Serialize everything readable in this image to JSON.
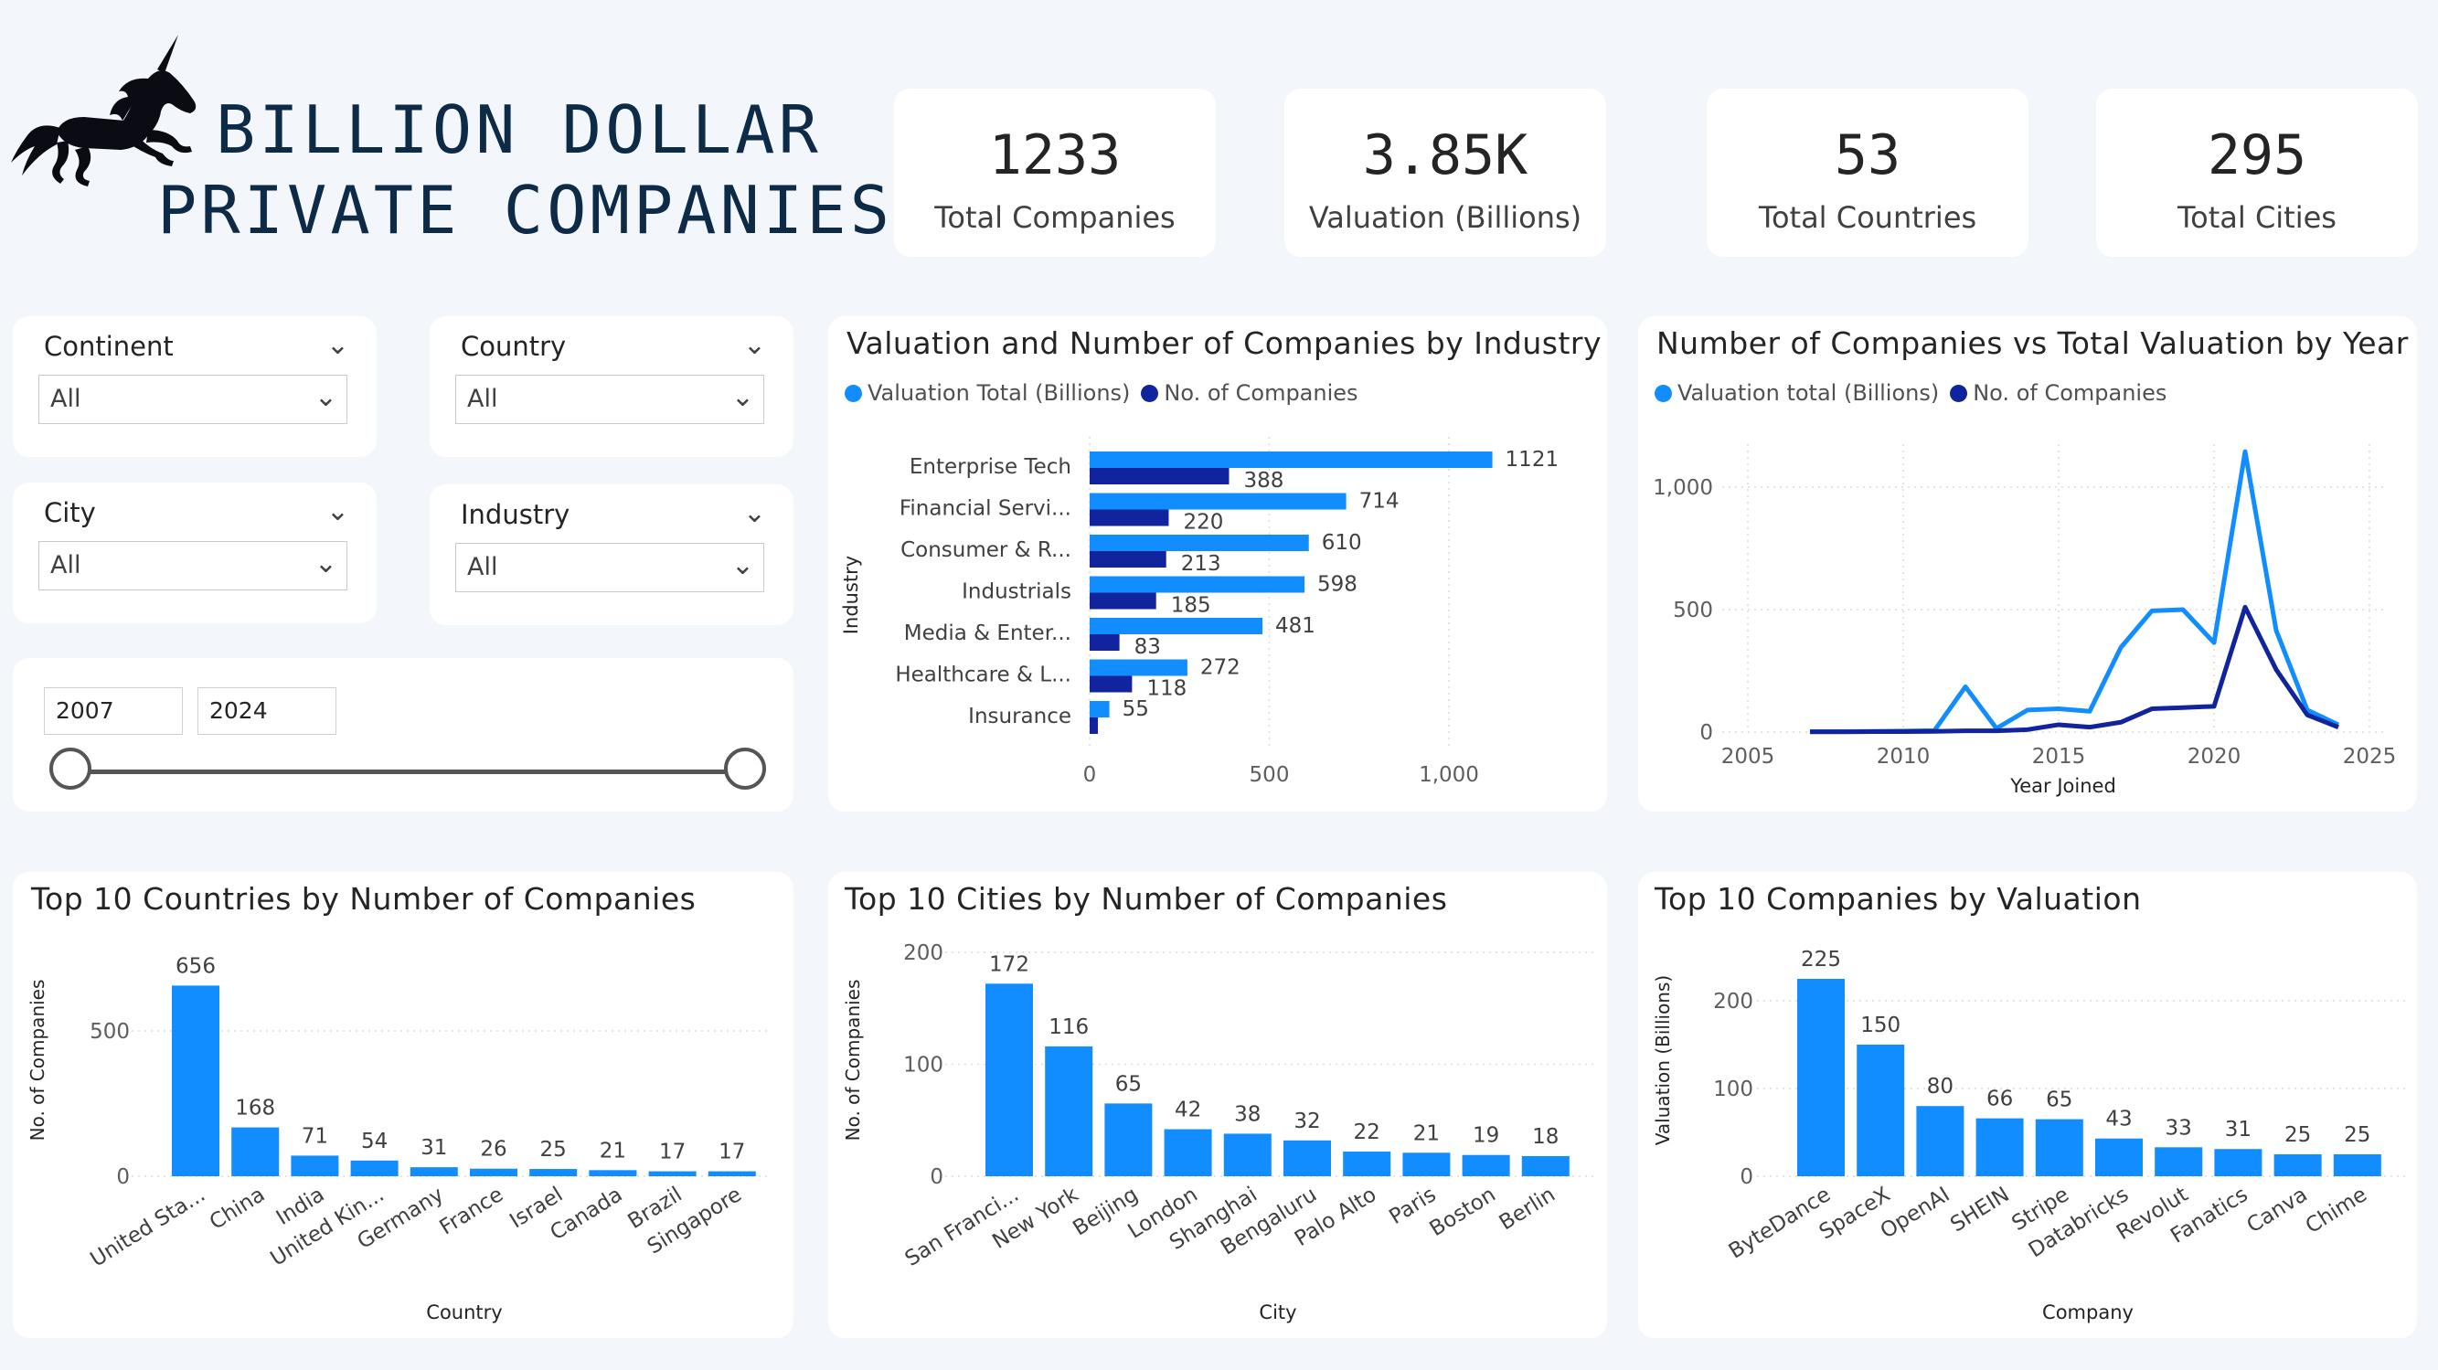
{
  "header": {
    "title_line1": "BILLION DOLLAR",
    "title_line2": "PRIVATE COMPANIES",
    "logo_icon": "unicorn-icon"
  },
  "kpis": [
    {
      "value": "1233",
      "label": "Total Companies"
    },
    {
      "value": "3.85K",
      "label": "Valuation (Billions)"
    },
    {
      "value": "53",
      "label": "Total Countries"
    },
    {
      "value": "295",
      "label": "Total Cities"
    }
  ],
  "filters": {
    "continent": {
      "label": "Continent",
      "value": "All"
    },
    "country": {
      "label": "Country",
      "value": "All"
    },
    "city": {
      "label": "City",
      "value": "All"
    },
    "industry": {
      "label": "Industry",
      "value": "All"
    },
    "year_range": {
      "start": "2007",
      "end": "2024"
    }
  },
  "colors": {
    "light_blue": "#118dff",
    "dark_blue": "#12239e"
  },
  "charts": {
    "industry": {
      "title": "Valuation and Number of Companies by Industry",
      "legend": [
        "Valuation Total (Billions)",
        "No. of Companies"
      ],
      "ylabel": "Industry",
      "xticks": [
        "0",
        "500",
        "1,000"
      ]
    },
    "year": {
      "title": "Number of Companies vs Total Valuation by Year",
      "legend": [
        "Valuation total (Billions)",
        "No. of Companies"
      ],
      "xlabel": "Year Joined",
      "xticks": [
        "2005",
        "2010",
        "2015",
        "2020",
        "2025"
      ],
      "yticks": [
        "0",
        "500",
        "1,000"
      ]
    },
    "countries": {
      "title": "Top 10 Countries by Number of Companies",
      "xlabel": "Country",
      "ylabel": "No. of Companies",
      "yticks": [
        "0",
        "500"
      ]
    },
    "cities": {
      "title": "Top 10 Cities by Number of Companies",
      "xlabel": "City",
      "ylabel": "No. of Companies",
      "yticks": [
        "0",
        "100",
        "200"
      ]
    },
    "companies": {
      "title": "Top 10 Companies by Valuation",
      "xlabel": "Company",
      "ylabel": "Valuation (Billions)",
      "yticks": [
        "0",
        "100",
        "200"
      ]
    }
  },
  "chart_data": [
    {
      "type": "bar",
      "orientation": "horizontal",
      "categories": [
        "Enterprise Tech",
        "Financial Servi...",
        "Consumer & R...",
        "Industrials",
        "Media & Enter...",
        "Healthcare & L...",
        "Insurance"
      ],
      "series": [
        {
          "name": "Valuation Total (Billions)",
          "values": [
            1121,
            714,
            610,
            598,
            481,
            272,
            55
          ]
        },
        {
          "name": "No. of Companies",
          "values": [
            388,
            220,
            213,
            185,
            83,
            118,
            null
          ]
        }
      ],
      "xlim": [
        0,
        1200
      ]
    },
    {
      "type": "line",
      "x": [
        2007,
        2008,
        2009,
        2010,
        2011,
        2012,
        2013,
        2014,
        2015,
        2016,
        2017,
        2018,
        2019,
        2020,
        2021,
        2022,
        2023,
        2024
      ],
      "series": [
        {
          "name": "Valuation total (Billions)",
          "values": [
            2,
            2,
            3,
            4,
            6,
            185,
            15,
            90,
            95,
            85,
            345,
            495,
            500,
            365,
            1145,
            415,
            90,
            30
          ]
        },
        {
          "name": "No. of Companies",
          "values": [
            1,
            1,
            2,
            2,
            3,
            5,
            5,
            10,
            30,
            20,
            40,
            95,
            100,
            105,
            510,
            255,
            70,
            20
          ]
        }
      ],
      "xlim": [
        2005,
        2025
      ],
      "ylim": [
        0,
        1150
      ]
    },
    {
      "type": "bar",
      "categories": [
        "United Sta...",
        "China",
        "India",
        "United Kin...",
        "Germany",
        "France",
        "Israel",
        "Canada",
        "Brazil",
        "Singapore"
      ],
      "values": [
        656,
        168,
        71,
        54,
        31,
        26,
        25,
        21,
        17,
        17
      ],
      "ylim": [
        0,
        700
      ]
    },
    {
      "type": "bar",
      "categories": [
        "San Franci...",
        "New York",
        "Beijing",
        "London",
        "Shanghai",
        "Bengaluru",
        "Palo Alto",
        "Paris",
        "Boston",
        "Berlin"
      ],
      "values": [
        172,
        116,
        65,
        42,
        38,
        32,
        22,
        21,
        19,
        18
      ],
      "ylim": [
        0,
        200
      ]
    },
    {
      "type": "bar",
      "categories": [
        "ByteDance",
        "SpaceX",
        "OpenAI",
        "SHEIN",
        "Stripe",
        "Databricks",
        "Revolut",
        "Fanatics",
        "Canva",
        "Chime"
      ],
      "values": [
        225,
        150,
        80,
        66,
        65,
        43,
        33,
        31,
        25,
        25
      ],
      "ylim": [
        0,
        240
      ]
    }
  ]
}
